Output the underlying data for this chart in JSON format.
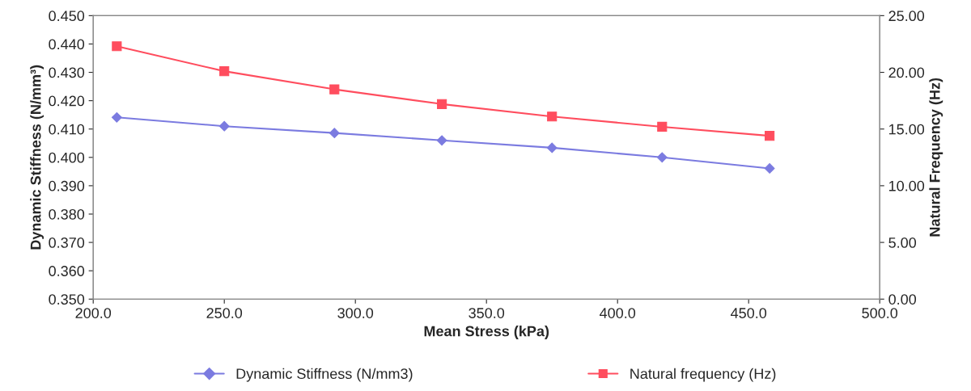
{
  "chart_data": {
    "type": "line",
    "x": [
      209,
      250,
      292,
      333,
      375,
      417,
      458
    ],
    "xlabel": "Mean Stress (kPa)",
    "ylabel": "Dynamic Stiffness (N/mm³)",
    "y2label": "Natural Frequency (Hz)",
    "xlim": [
      200,
      500
    ],
    "xticks": [
      {
        "value": 200,
        "label": "200.0"
      },
      {
        "value": 250,
        "label": "250.0"
      },
      {
        "value": 300,
        "label": "300.0"
      },
      {
        "value": 350,
        "label": "350.0"
      },
      {
        "value": 400,
        "label": "400.0"
      },
      {
        "value": 450,
        "label": "450.0"
      },
      {
        "value": 500,
        "label": "500.0"
      }
    ],
    "ylim": [
      0.35,
      0.45
    ],
    "yticks": [
      {
        "value": 0.35,
        "label": "0.350"
      },
      {
        "value": 0.36,
        "label": "0.360"
      },
      {
        "value": 0.37,
        "label": "0.370"
      },
      {
        "value": 0.38,
        "label": "0.380"
      },
      {
        "value": 0.39,
        "label": "0.390"
      },
      {
        "value": 0.4,
        "label": "0.400"
      },
      {
        "value": 0.41,
        "label": "0.410"
      },
      {
        "value": 0.42,
        "label": "0.420"
      },
      {
        "value": 0.43,
        "label": "0.430"
      },
      {
        "value": 0.44,
        "label": "0.440"
      },
      {
        "value": 0.45,
        "label": "0.450"
      }
    ],
    "y2lim": [
      0,
      25
    ],
    "y2ticks": [
      {
        "value": 0,
        "label": "0.00"
      },
      {
        "value": 5,
        "label": "5.00"
      },
      {
        "value": 10,
        "label": "10.00"
      },
      {
        "value": 15,
        "label": "15.00"
      },
      {
        "value": 20,
        "label": "20.00"
      },
      {
        "value": 25,
        "label": "25.00"
      }
    ],
    "series": [
      {
        "name": "Dynamic Stiffness (N/mm3)",
        "color": "#7b7be0",
        "marker": "diamond",
        "values": [
          0.4141,
          0.411,
          0.4086,
          0.406,
          0.4034,
          0.4,
          0.3961
        ]
      },
      {
        "name": "Natural frequency (Hz)",
        "color": "#ff4d5e",
        "marker": "square",
        "axis": "y2",
        "values": [
          22.3,
          20.1,
          18.5,
          17.2,
          16.1,
          15.2,
          14.4
        ]
      }
    ],
    "legend": "bottom",
    "grid": false
  }
}
